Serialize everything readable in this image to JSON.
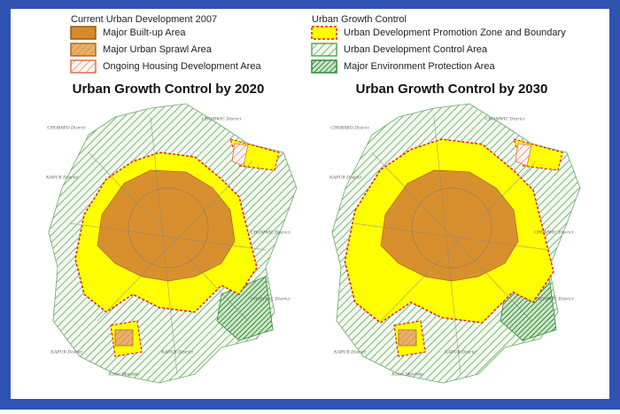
{
  "legend_current": {
    "title": "Current Urban Development 2007",
    "items": [
      "Major Built-up Area",
      "Major Urban Sprawl Area",
      "Ongoing Housing Development Area"
    ]
  },
  "legend_control": {
    "title": "Urban Growth Control",
    "items": [
      "Urban Development Promotion Zone and Boundary",
      "Urban Development Control Area",
      "Major Environment Protection Area"
    ]
  },
  "maps": [
    {
      "title": "Urban Growth Control by 2020",
      "labels": [
        "CHOBMIO District",
        "CHOMWIC District",
        "KAPUR District",
        "CHOMWIC District",
        "CHOMWIC District",
        "KAPUR District",
        "KAPUR District",
        "Kalse/ Mardoko"
      ]
    },
    {
      "title": "Urban Growth Control by 2030",
      "labels": [
        "CHOBMIO District",
        "CHOMWIC District",
        "KAPUR District",
        "CHOMWIC District",
        "CHOMWIC District",
        "KAPUR District",
        "KAPUR District",
        "Kalse/ Mardoko"
      ]
    }
  ]
}
